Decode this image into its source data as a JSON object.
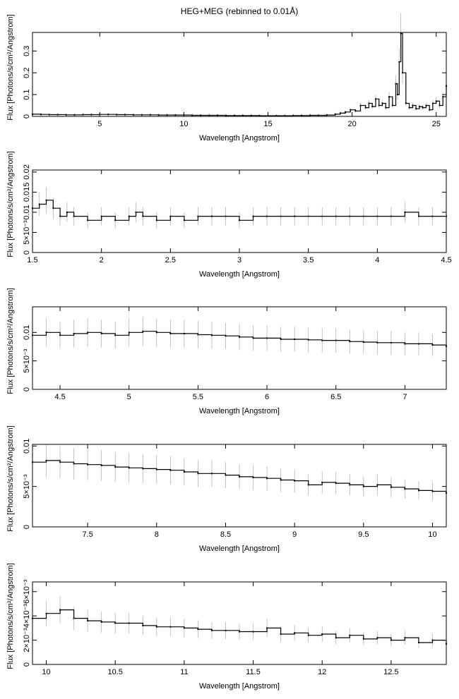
{
  "figure": {
    "title": "HEG+MEG (rebinned to 0.01Å)"
  },
  "colors": {
    "data": "#000000",
    "errorbar": "#aaaaaa",
    "frame": "#000000"
  },
  "chart_data": [
    {
      "type": "line",
      "title": "HEG+MEG (rebinned to 0.01Å)",
      "xlabel": "Wavelength [Angstrom]",
      "ylabel": "Flux [Photons/s/cm²/Angstrom]",
      "xlim": [
        1.0,
        25.6
      ],
      "ylim": [
        0,
        0.385
      ],
      "xticks": [
        5,
        10,
        15,
        20,
        25
      ],
      "xtick_labels": [
        "5",
        "10",
        "15",
        "20",
        "25"
      ],
      "yticks": [
        0,
        0.1,
        0.2,
        0.3
      ],
      "ytick_labels": [
        "0",
        "0.1",
        "0.2",
        "0.3"
      ],
      "grid": false,
      "series": [
        {
          "x": [
            1.0,
            1.5,
            2.0,
            2.5,
            3.0,
            3.5,
            4.0,
            4.5,
            5.0,
            5.5,
            6.0,
            6.5,
            7.0,
            7.5,
            8.0,
            8.5,
            9.0,
            9.5,
            10.0,
            10.5,
            11.0,
            11.5,
            12.0,
            12.5,
            13.0,
            13.5,
            14.0,
            14.5,
            15.0,
            15.5,
            16.0,
            16.5,
            17.0,
            17.5,
            18.0,
            18.5,
            19.0,
            19.3,
            19.6,
            19.9,
            20.2,
            20.5,
            20.8,
            21.0,
            21.2,
            21.4,
            21.6,
            21.8,
            22.0,
            22.2,
            22.4,
            22.6,
            22.7,
            22.8,
            22.9,
            23.0,
            23.2,
            23.4,
            23.6,
            23.8,
            24.0,
            24.2,
            24.4,
            24.6,
            24.8,
            25.0,
            25.2,
            25.4,
            25.6
          ],
          "y": [
            0.01,
            0.009,
            0.008,
            0.008,
            0.007,
            0.007,
            0.008,
            0.008,
            0.009,
            0.009,
            0.008,
            0.008,
            0.007,
            0.007,
            0.007,
            0.006,
            0.006,
            0.006,
            0.006,
            0.005,
            0.005,
            0.005,
            0.005,
            0.004,
            0.004,
            0.004,
            0.004,
            0.003,
            0.003,
            0.003,
            0.003,
            0.004,
            0.004,
            0.005,
            0.005,
            0.006,
            0.01,
            0.015,
            0.02,
            0.03,
            0.025,
            0.05,
            0.04,
            0.06,
            0.045,
            0.08,
            0.05,
            0.06,
            0.04,
            0.09,
            0.05,
            0.15,
            0.1,
            0.25,
            0.38,
            0.2,
            0.06,
            0.04,
            0.05,
            0.035,
            0.045,
            0.04,
            0.05,
            0.03,
            0.06,
            0.07,
            0.05,
            0.09,
            0.14
          ]
        }
      ]
    },
    {
      "type": "line",
      "xlabel": "Wavelength [Angstrom]",
      "ylabel": "Flux [Photons/s/cm²/Angstrom]",
      "xlim": [
        1.5,
        4.5
      ],
      "ylim": [
        0,
        0.0205
      ],
      "xticks": [
        1.5,
        2,
        2.5,
        3,
        3.5,
        4,
        4.5
      ],
      "xtick_labels": [
        "1.5",
        "2",
        "2.5",
        "3",
        "3.5",
        "4",
        "4.5"
      ],
      "yticks": [
        0,
        0.005,
        0.01,
        0.015,
        0.02
      ],
      "ytick_labels": [
        "0",
        "5×10⁻³",
        "0.01",
        "0.015",
        "0.02"
      ],
      "grid": false,
      "series": [
        {
          "x": [
            1.5,
            1.55,
            1.6,
            1.65,
            1.7,
            1.75,
            1.8,
            1.9,
            2.0,
            2.1,
            2.2,
            2.25,
            2.3,
            2.4,
            2.5,
            2.6,
            2.7,
            2.8,
            2.9,
            3.0,
            3.1,
            3.2,
            3.3,
            3.4,
            3.5,
            3.6,
            3.7,
            3.8,
            3.9,
            4.0,
            4.1,
            4.2,
            4.3,
            4.4,
            4.5
          ],
          "y": [
            0.011,
            0.012,
            0.013,
            0.011,
            0.009,
            0.01,
            0.009,
            0.008,
            0.009,
            0.008,
            0.009,
            0.01,
            0.009,
            0.008,
            0.009,
            0.008,
            0.009,
            0.009,
            0.009,
            0.008,
            0.009,
            0.009,
            0.009,
            0.009,
            0.009,
            0.009,
            0.009,
            0.009,
            0.009,
            0.009,
            0.009,
            0.01,
            0.009,
            0.009,
            0.009
          ]
        }
      ]
    },
    {
      "type": "line",
      "xlabel": "Wavelength [Angstrom]",
      "ylabel": "Flux [Photons/s/cm²/Angstrom]",
      "xlim": [
        4.3,
        7.3
      ],
      "ylim": [
        0,
        0.0145
      ],
      "xticks": [
        4.5,
        5,
        5.5,
        6,
        6.5,
        7
      ],
      "xtick_labels": [
        "4.5",
        "5",
        "5.5",
        "6",
        "6.5",
        "7"
      ],
      "yticks": [
        0,
        0.005,
        0.01
      ],
      "ytick_labels": [
        "0",
        "5×10⁻³",
        "0.01"
      ],
      "grid": false,
      "series": [
        {
          "x": [
            4.3,
            4.4,
            4.5,
            4.6,
            4.7,
            4.8,
            4.9,
            5.0,
            5.1,
            5.2,
            5.3,
            5.4,
            5.5,
            5.6,
            5.7,
            5.8,
            5.9,
            6.0,
            6.1,
            6.2,
            6.3,
            6.4,
            6.5,
            6.6,
            6.7,
            6.8,
            6.9,
            7.0,
            7.1,
            7.2,
            7.3
          ],
          "y": [
            0.0095,
            0.01,
            0.0095,
            0.0098,
            0.01,
            0.0098,
            0.0095,
            0.01,
            0.0102,
            0.01,
            0.0098,
            0.0098,
            0.0096,
            0.0095,
            0.0094,
            0.0092,
            0.009,
            0.009,
            0.0088,
            0.0088,
            0.0087,
            0.0086,
            0.0086,
            0.0084,
            0.0083,
            0.0082,
            0.0082,
            0.008,
            0.008,
            0.0078,
            0.0076
          ]
        }
      ]
    },
    {
      "type": "line",
      "xlabel": "Wavelength [Angstrom]",
      "ylabel": "Flux [Photons/s/cm²/Angstrom]",
      "xlim": [
        7.1,
        10.1
      ],
      "ylim": [
        0,
        0.0102
      ],
      "xticks": [
        7.5,
        8,
        8.5,
        9,
        9.5,
        10
      ],
      "xtick_labels": [
        "7.5",
        "8",
        "8.5",
        "9",
        "9.5",
        "10"
      ],
      "yticks": [
        0,
        0.005,
        0.01
      ],
      "ytick_labels": [
        "0",
        "5×10⁻³",
        "0.01"
      ],
      "grid": false,
      "series": [
        {
          "x": [
            7.1,
            7.2,
            7.3,
            7.4,
            7.5,
            7.6,
            7.7,
            7.8,
            7.9,
            8.0,
            8.1,
            8.2,
            8.3,
            8.4,
            8.5,
            8.6,
            8.7,
            8.8,
            8.9,
            9.0,
            9.1,
            9.2,
            9.3,
            9.4,
            9.5,
            9.6,
            9.7,
            9.8,
            9.9,
            10.0,
            10.1
          ],
          "y": [
            0.008,
            0.0082,
            0.008,
            0.0078,
            0.0077,
            0.0076,
            0.0074,
            0.0073,
            0.0072,
            0.0071,
            0.007,
            0.0068,
            0.0066,
            0.0066,
            0.0064,
            0.0062,
            0.0061,
            0.006,
            0.0058,
            0.0057,
            0.0052,
            0.0055,
            0.0054,
            0.0052,
            0.005,
            0.0052,
            0.0049,
            0.0047,
            0.0045,
            0.0044,
            0.0042
          ]
        }
      ]
    },
    {
      "type": "line",
      "xlabel": "Wavelength [Angstrom]",
      "ylabel": "Flux [Photons/s/cm²/Angstrom]",
      "xlim": [
        9.9,
        12.9
      ],
      "ylim": [
        0,
        0.0068
      ],
      "xticks": [
        10,
        10.5,
        11,
        11.5,
        12,
        12.5
      ],
      "xtick_labels": [
        "10",
        "10.5",
        "11",
        "11.5",
        "12",
        "12.5"
      ],
      "yticks": [
        0,
        0.002,
        0.004,
        0.006
      ],
      "ytick_labels": [
        "0",
        "2×10⁻³",
        "4×10⁻³",
        "6×10⁻³"
      ],
      "grid": false,
      "series": [
        {
          "x": [
            9.9,
            10.0,
            10.1,
            10.2,
            10.3,
            10.4,
            10.5,
            10.6,
            10.7,
            10.8,
            10.9,
            11.0,
            11.1,
            11.2,
            11.3,
            11.4,
            11.5,
            11.6,
            11.7,
            11.8,
            11.9,
            12.0,
            12.1,
            12.2,
            12.3,
            12.4,
            12.5,
            12.6,
            12.7,
            12.8,
            12.9
          ],
          "y": [
            0.0038,
            0.0042,
            0.0045,
            0.0038,
            0.0036,
            0.0035,
            0.0034,
            0.0034,
            0.0032,
            0.0031,
            0.0031,
            0.003,
            0.0029,
            0.0028,
            0.0028,
            0.0027,
            0.0027,
            0.003,
            0.0025,
            0.0026,
            0.0024,
            0.0025,
            0.0022,
            0.0024,
            0.0021,
            0.0022,
            0.002,
            0.0022,
            0.0018,
            0.002,
            0.0017
          ]
        }
      ]
    }
  ]
}
